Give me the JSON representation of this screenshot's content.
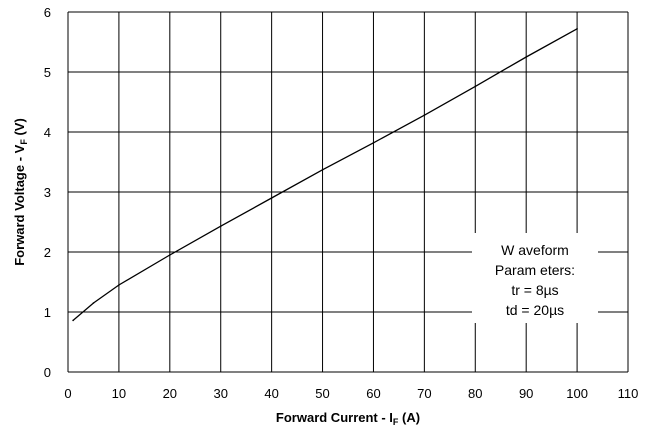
{
  "chart_data": {
    "type": "line",
    "xlabel": {
      "main": "Forward Current - I",
      "sub": "F",
      "unit": " (A)"
    },
    "ylabel": {
      "main": "Forward Voltage - V",
      "sub": "F",
      "unit": " (V)"
    },
    "xlim": [
      0,
      110
    ],
    "ylim": [
      0,
      6
    ],
    "x_ticks": [
      "0",
      "10",
      "20",
      "30",
      "40",
      "50",
      "60",
      "70",
      "80",
      "90",
      "100",
      "110"
    ],
    "y_ticks": [
      "0",
      "1",
      "2",
      "3",
      "4",
      "5",
      "6"
    ],
    "grid": true,
    "series": [
      {
        "x": [
          1,
          5,
          10,
          20,
          30,
          40,
          50,
          60,
          70,
          80,
          90,
          100
        ],
        "y": [
          0.86,
          1.15,
          1.45,
          1.95,
          2.43,
          2.9,
          3.37,
          3.82,
          4.28,
          4.76,
          5.25,
          5.72
        ]
      }
    ],
    "annotation": {
      "lines": [
        "W aveform",
        "Param eters:",
        "tr = 8µs",
        "td = 20µs"
      ]
    }
  }
}
